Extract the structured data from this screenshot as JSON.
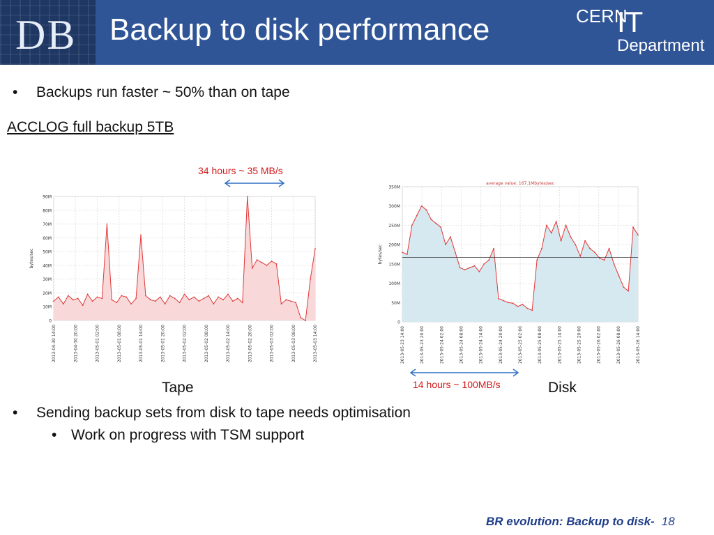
{
  "header": {
    "logo_text": "DB",
    "title": "Backup to disk performance",
    "cern": "CERN",
    "it": "IT",
    "department": "Department"
  },
  "bullets": {
    "b1": "Backups run faster ~ 50% than on tape",
    "b2": "Sending backup sets from disk to tape needs optimisation",
    "b2_sub": "Work on progress with TSM support",
    "bullet_char": "•"
  },
  "section": {
    "acclog": "ACCLOG full backup 5TB"
  },
  "annotations": {
    "tape_rate": "34 hours ~ 35 MB/s",
    "disk_rate": "14 hours ~ 100MB/s",
    "tape_label": "Tape",
    "disk_label": "Disk"
  },
  "footer": {
    "text": "BR evolution: Backup to disk-",
    "page": "18"
  },
  "colors": {
    "header_bg": "#2f5597",
    "annotation_red": "#d11a1a",
    "arrow_blue": "#2f6fc2"
  },
  "chart_data": [
    {
      "type": "area",
      "name": "tape",
      "ylabel": "bytes/sec",
      "yticks": [
        "0",
        "10M",
        "20M",
        "30M",
        "40M",
        "50M",
        "60M",
        "70M",
        "80M",
        "90M"
      ],
      "ylim": [
        0,
        90
      ],
      "xticks": [
        "2013-04-30 14:00",
        "2013-04-30 20:00",
        "2013-05-01 02:00",
        "2013-05-01 08:00",
        "2013-05-01 14:00",
        "2013-05-01 20:00",
        "2013-05-02 02:00",
        "2013-05-02 08:00",
        "2013-05-02 14:00",
        "2013-05-02 20:00",
        "2013-05-03 02:00",
        "2013-05-03 08:00",
        "2013-05-03 14:00"
      ],
      "series": [
        {
          "values": [
            14,
            17,
            12,
            18,
            15,
            16,
            11,
            19,
            14,
            17,
            16,
            70,
            15,
            13,
            18,
            17,
            12,
            16,
            62,
            18,
            15,
            14,
            17,
            12,
            18,
            16,
            13,
            19,
            15,
            17,
            14,
            16,
            18,
            12,
            17,
            15,
            19,
            14,
            16,
            13,
            90,
            38,
            44,
            42,
            40,
            43,
            41,
            12,
            15,
            14,
            13,
            2,
            0,
            30,
            52
          ]
        }
      ],
      "grid": true
    },
    {
      "type": "area",
      "name": "disk",
      "ylabel": "bytes/sec",
      "subtitle": "average value: 167.1Mbytes/sec",
      "average": 167.1,
      "yticks": [
        "0",
        "50M",
        "100M",
        "150M",
        "200M",
        "250M",
        "300M",
        "350M"
      ],
      "ylim": [
        0,
        350
      ],
      "xticks": [
        "2013-05-23 14:00",
        "2013-05-23 20:00",
        "2013-05-24 02:00",
        "2013-05-24 08:00",
        "2013-05-24 14:00",
        "2013-05-24 20:00",
        "2013-05-25 02:00",
        "2013-05-25 08:00",
        "2013-05-25 14:00",
        "2013-05-25 20:00",
        "2013-05-26 02:00",
        "2013-05-26 08:00",
        "2013-05-26 14:00"
      ],
      "series": [
        {
          "values": [
            180,
            175,
            250,
            275,
            300,
            290,
            265,
            255,
            245,
            200,
            220,
            180,
            140,
            135,
            140,
            145,
            130,
            150,
            160,
            190,
            60,
            55,
            50,
            48,
            40,
            45,
            35,
            30,
            160,
            190,
            250,
            230,
            260,
            210,
            250,
            220,
            200,
            170,
            210,
            190,
            180,
            165,
            160,
            190,
            150,
            120,
            90,
            80,
            245,
            225
          ]
        }
      ],
      "grid": true
    }
  ]
}
